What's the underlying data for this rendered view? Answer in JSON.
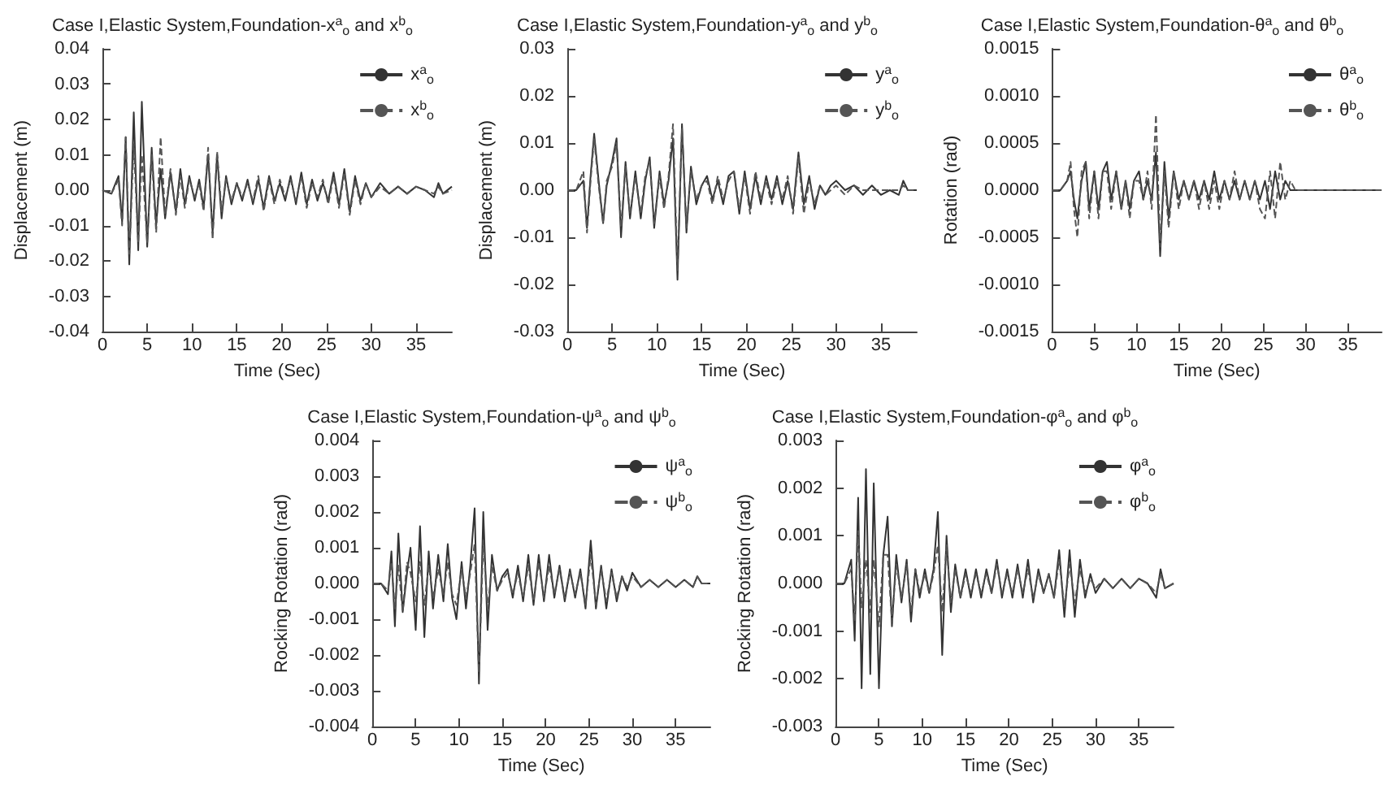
{
  "chart_data": [
    {
      "type": "line",
      "title": "Case I,Elastic System,Foundation-x$^{a}$$_{o}$ and x$^{b}$$_{o}$",
      "xlabel": "Time (Sec)",
      "ylabel": "Displacement (m)",
      "legend": "top right",
      "grid": false,
      "xlim": [
        0,
        39
      ],
      "xticks": [
        0,
        5,
        10,
        15,
        20,
        25,
        30,
        35
      ],
      "ylim": [
        -0.04,
        0.04
      ],
      "yticks": [
        {
          "value": -0.04,
          "label": "-0.04"
        },
        {
          "value": -0.03,
          "label": "-0.03"
        },
        {
          "value": -0.02,
          "label": "-0.02"
        },
        {
          "value": -0.01,
          "label": "-0.01"
        },
        {
          "value": 0,
          "label": "0.00"
        },
        {
          "value": 0.01,
          "label": "0.01"
        },
        {
          "value": 0.02,
          "label": "0.02"
        },
        {
          "value": 0.03,
          "label": "0.03"
        },
        {
          "value": 0.04,
          "label": "0.04"
        }
      ],
      "x": [
        0,
        1,
        1.8,
        2.2,
        2.6,
        3.0,
        3.5,
        4.0,
        4.4,
        5.0,
        5.5,
        6.0,
        6.5,
        7.0,
        7.6,
        8.2,
        8.7,
        9.2,
        9.7,
        10.3,
        10.8,
        11.3,
        11.8,
        12.3,
        12.8,
        13.3,
        13.8,
        14.4,
        15,
        15.6,
        16.2,
        16.8,
        17.4,
        18,
        18.6,
        19.2,
        19.8,
        20.4,
        21,
        21.6,
        22.2,
        22.8,
        23.4,
        24,
        24.6,
        25.2,
        25.8,
        26.4,
        27,
        27.6,
        28.2,
        28.8,
        29.4,
        30,
        31,
        32,
        33,
        34,
        35,
        36,
        37,
        37.5,
        38,
        39
      ],
      "series": [
        {
          "name": "x$^{a}$$_{o}$",
          "color": "#333333",
          "line_style": "solid",
          "values": [
            0,
            -0.001,
            0.004,
            -0.009,
            0.015,
            -0.021,
            0.022,
            -0.017,
            0.025,
            -0.016,
            0.012,
            -0.01,
            0.006,
            -0.008,
            0.005,
            -0.006,
            0.006,
            -0.004,
            0.004,
            -0.003,
            0.003,
            -0.005,
            0.01,
            -0.012,
            0.01,
            -0.008,
            0.004,
            -0.004,
            0.002,
            -0.003,
            0.003,
            -0.004,
            0.003,
            -0.005,
            0.004,
            -0.003,
            0.002,
            -0.003,
            0.004,
            -0.004,
            0.005,
            -0.004,
            0.003,
            -0.003,
            0.002,
            -0.003,
            0.005,
            -0.004,
            0.006,
            -0.006,
            0.004,
            -0.003,
            0.002,
            -0.002,
            0.002,
            -0.001,
            0.001,
            -0.001,
            0.001,
            0,
            -0.002,
            0.002,
            -0.001,
            0.001
          ]
        },
        {
          "name": "x$^{b}$$_{o}$",
          "color": "#555555",
          "line_style": "dashed",
          "values": [
            0,
            -0.001,
            0.003,
            -0.01,
            0.015,
            -0.018,
            0.013,
            -0.015,
            0.01,
            -0.015,
            0.01,
            -0.012,
            0.015,
            -0.007,
            0.006,
            -0.007,
            0.004,
            -0.005,
            0.003,
            -0.002,
            0.002,
            -0.006,
            0.012,
            -0.014,
            0.011,
            -0.006,
            0.003,
            -0.003,
            0.002,
            -0.002,
            0.002,
            -0.003,
            0.004,
            -0.006,
            0.003,
            -0.004,
            0.003,
            -0.002,
            0.003,
            -0.003,
            0.004,
            -0.005,
            0.002,
            -0.002,
            0.003,
            -0.004,
            0.004,
            -0.005,
            0.005,
            -0.007,
            0.003,
            -0.004,
            0.002,
            -0.002,
            0.001,
            -0.001,
            0.001,
            -0.001,
            0.001,
            0,
            -0.001,
            0.001,
            -0.001,
            0
          ]
        }
      ]
    },
    {
      "type": "line",
      "title": "Case I,Elastic System,Foundation-y$^{a}$$_{o}$ and y$^{b}$$_{o}$",
      "xlabel": "Time (Sec)",
      "ylabel": "Displacement (m)",
      "legend": "top right",
      "grid": false,
      "xlim": [
        0,
        39
      ],
      "xticks": [
        0,
        5,
        10,
        15,
        20,
        25,
        30,
        35
      ],
      "ylim": [
        -0.03,
        0.03
      ],
      "yticks": [
        {
          "value": -0.03,
          "label": "-0.03"
        },
        {
          "value": -0.02,
          "label": "-0.02"
        },
        {
          "value": -0.01,
          "label": "-0.01"
        },
        {
          "value": 0,
          "label": "0.00"
        },
        {
          "value": 0.01,
          "label": "0.01"
        },
        {
          "value": 0.02,
          "label": "0.02"
        },
        {
          "value": 0.03,
          "label": "0.03"
        }
      ],
      "x": [
        0,
        1,
        1.8,
        2.2,
        2.6,
        3.0,
        3.5,
        4.0,
        4.4,
        5.0,
        5.5,
        6.0,
        6.5,
        7.0,
        7.6,
        8.2,
        8.7,
        9.2,
        9.7,
        10.3,
        10.8,
        11.3,
        11.8,
        12.3,
        12.8,
        13.3,
        13.8,
        14.4,
        15,
        15.6,
        16.2,
        16.8,
        17.4,
        18,
        18.6,
        19.2,
        19.8,
        20.4,
        21,
        21.6,
        22.2,
        22.8,
        23.4,
        24,
        24.6,
        25.2,
        25.8,
        26.4,
        27,
        27.6,
        28.2,
        28.8,
        29.4,
        30,
        31,
        32,
        33,
        34,
        35,
        36,
        37,
        37.5,
        38,
        39
      ],
      "series": [
        {
          "name": "y$^{a}$$_{o}$",
          "color": "#333333",
          "line_style": "solid",
          "values": [
            0,
            0,
            0.002,
            -0.008,
            0.003,
            0.012,
            0.002,
            -0.007,
            0.001,
            0.006,
            0.011,
            -0.01,
            0.006,
            -0.006,
            0.004,
            -0.006,
            0.002,
            0.007,
            -0.008,
            0.004,
            -0.003,
            0.002,
            0.011,
            -0.019,
            0.014,
            -0.009,
            0.005,
            -0.003,
            0.001,
            0.003,
            -0.002,
            0.002,
            -0.003,
            0.003,
            0.004,
            -0.005,
            0.004,
            -0.004,
            0.003,
            -0.003,
            0.003,
            -0.002,
            0.003,
            -0.003,
            0.002,
            -0.004,
            0.008,
            -0.003,
            0.003,
            -0.004,
            0.001,
            -0.001,
            0.001,
            0.002,
            0,
            0.001,
            -0.001,
            0.001,
            -0.001,
            0,
            -0.001,
            0.002,
            0,
            0
          ]
        },
        {
          "name": "y$^{b}$$_{o}$",
          "color": "#555555",
          "line_style": "dashed",
          "values": [
            0,
            0,
            0.004,
            -0.009,
            0.002,
            0.011,
            0.001,
            -0.007,
            0.002,
            0.005,
            0.01,
            -0.008,
            0.005,
            -0.005,
            0.003,
            -0.005,
            0.003,
            0.006,
            -0.007,
            0.003,
            -0.004,
            0.003,
            0.014,
            -0.017,
            0.013,
            -0.008,
            0.004,
            -0.002,
            0.001,
            0.002,
            -0.003,
            0.003,
            -0.002,
            0.002,
            0.004,
            -0.004,
            0.003,
            -0.005,
            0.004,
            -0.002,
            0.002,
            -0.003,
            0.002,
            -0.002,
            0.003,
            -0.005,
            0.007,
            -0.005,
            0.002,
            -0.003,
            0.001,
            -0.001,
            0,
            0.001,
            -0.001,
            0.001,
            0,
            0,
            0,
            0,
            0,
            0.001,
            0,
            0
          ]
        }
      ]
    },
    {
      "type": "line",
      "title": "Case I,Elastic System,Foundation-θ$^{a}$$_{o}$ and θ$^{b}$$_{o}$",
      "xlabel": "Time (Sec)",
      "ylabel": "Rotation (rad)",
      "legend": "top right",
      "grid": false,
      "xlim": [
        0,
        39
      ],
      "xticks": [
        0,
        5,
        10,
        15,
        20,
        25,
        30,
        35
      ],
      "ylim": [
        -0.0015,
        0.0015
      ],
      "yticks": [
        -0.0015,
        {
          "value": -0.001,
          "label": "-0.0010"
        },
        -0.0005,
        {
          "value": 0,
          "label": "0.0000"
        },
        0.0005,
        {
          "value": 0.001,
          "label": "0.0010"
        },
        0.0015
      ],
      "x": [
        0,
        1,
        1.8,
        2.2,
        2.6,
        3.0,
        3.5,
        4.0,
        4.4,
        5.0,
        5.5,
        6.0,
        6.5,
        7.0,
        7.6,
        8.2,
        8.7,
        9.2,
        9.7,
        10.3,
        10.8,
        11.3,
        11.8,
        12.3,
        12.8,
        13.3,
        13.8,
        14.4,
        15,
        15.6,
        16.2,
        16.8,
        17.4,
        18,
        18.6,
        19.2,
        19.8,
        20.4,
        21,
        21.6,
        22.2,
        22.8,
        23.4,
        24,
        24.6,
        25.2,
        25.8,
        26.4,
        27,
        27.6,
        28.2,
        28.8,
        29.4,
        30,
        31,
        32,
        33,
        34,
        35,
        36,
        37,
        37.5,
        38,
        39
      ],
      "series": [
        {
          "name": "θ$^{a}$$_{o}$",
          "color": "#333333",
          "line_style": "solid",
          "values": [
            0,
            0,
            0.0001,
            0.0002,
            -0.0001,
            -0.0003,
            0.0001,
            0.0003,
            -0.0002,
            0.0002,
            -0.0002,
            0.0002,
            0.0003,
            -0.0001,
            0.0002,
            -0.0002,
            0.0001,
            -0.0002,
            0.0001,
            0.0002,
            -0.0001,
            0.0001,
            -0.0001,
            0.0004,
            -0.0007,
            0.0003,
            -0.0003,
            0.0002,
            -0.0001,
            0.0001,
            -0.0001,
            0.0001,
            -0.0001,
            0.0001,
            -0.0001,
            0.0002,
            -0.0001,
            0.0001,
            -0.0001,
            0.0001,
            -0.0001,
            0.0001,
            -0.0001,
            0.0001,
            -0.0001,
            0.0001,
            -0.0002,
            0.0002,
            -0.0001,
            0.0001,
            0,
            0,
            0,
            0,
            0,
            0,
            0,
            0,
            0,
            0,
            0,
            0,
            0,
            0
          ]
        },
        {
          "name": "θ$^{b}$$_{o}$",
          "color": "#555555",
          "line_style": "dashed",
          "values": [
            0,
            0,
            0.0001,
            0.0003,
            -0.0002,
            -0.0005,
            0.0002,
            0.0003,
            -0.0003,
            0.0002,
            -0.0003,
            0.0002,
            0.0002,
            -0.0002,
            0.0002,
            -0.0002,
            0.0001,
            -0.0003,
            0.0001,
            0.0001,
            -0.0001,
            0.0002,
            -0.0002,
            0.0008,
            -0.0006,
            0.0002,
            -0.0004,
            0.0002,
            -0.0002,
            0.0001,
            -0.0001,
            0.0001,
            -0.0002,
            0.0001,
            -0.0002,
            0.0001,
            -0.0002,
            0.0001,
            -0.0001,
            0.0002,
            -0.0001,
            0.0001,
            -0.0001,
            0.0001,
            -0.0002,
            -0.0003,
            0.0002,
            -0.0003,
            0.0003,
            -0.0001,
            0.0001,
            0,
            0,
            0,
            0,
            0,
            0,
            0,
            0,
            0,
            0,
            0,
            0,
            0
          ]
        }
      ]
    },
    {
      "type": "line",
      "title": "Case I,Elastic System,Foundation-ψ$^{a}$$_{o}$ and ψ$^{b}$$_{o}$",
      "xlabel": "Time (Sec)",
      "ylabel": "Rocking Rotation (rad)",
      "legend": "top right",
      "grid": false,
      "xlim": [
        0,
        39
      ],
      "xticks": [
        0,
        5,
        10,
        15,
        20,
        25,
        30,
        35
      ],
      "ylim": [
        -0.004,
        0.004
      ],
      "yticks": [
        -0.004,
        -0.003,
        -0.002,
        -0.001,
        {
          "value": 0,
          "label": "0.000"
        },
        0.001,
        0.002,
        0.003,
        0.004
      ],
      "x": [
        0,
        1,
        1.8,
        2.2,
        2.6,
        3.0,
        3.5,
        4.0,
        4.4,
        5.0,
        5.5,
        6.0,
        6.5,
        7.0,
        7.6,
        8.2,
        8.7,
        9.2,
        9.7,
        10.3,
        10.8,
        11.3,
        11.8,
        12.3,
        12.8,
        13.3,
        13.8,
        14.4,
        15,
        15.6,
        16.2,
        16.8,
        17.4,
        18,
        18.6,
        19.2,
        19.8,
        20.4,
        21,
        21.6,
        22.2,
        22.8,
        23.4,
        24,
        24.6,
        25.2,
        25.8,
        26.4,
        27,
        27.6,
        28.2,
        28.8,
        29.4,
        30,
        31,
        32,
        33,
        34,
        35,
        36,
        37,
        37.5,
        38,
        39
      ],
      "series": [
        {
          "name": "ψ$^{a}$$_{o}$",
          "color": "#333333",
          "line_style": "solid",
          "values": [
            0,
            0,
            -0.0003,
            0.0009,
            -0.0012,
            0.0014,
            -0.0008,
            0.0003,
            0.001,
            -0.0013,
            0.0016,
            -0.0015,
            0.0009,
            -0.0007,
            0.0008,
            -0.0005,
            0.0011,
            -0.0004,
            -0.001,
            0.0006,
            -0.0007,
            0.0005,
            0.0021,
            -0.0028,
            0.002,
            -0.0013,
            0.0008,
            -0.0002,
            0.0002,
            0.0004,
            -0.0004,
            0.0005,
            -0.0005,
            0.0008,
            -0.0006,
            0.0008,
            -0.0005,
            0.0008,
            -0.0004,
            0.0005,
            -0.0005,
            0.0004,
            -0.0004,
            0.0004,
            -0.0007,
            0.0012,
            -0.0007,
            0.0005,
            -0.0007,
            0.0004,
            -0.0005,
            0.0002,
            -0.0002,
            0.0003,
            -0.0001,
            0.0001,
            -0.0001,
            0.0001,
            -0.0001,
            0.0001,
            -0.0001,
            0.0002,
            0,
            0
          ]
        },
        {
          "name": "ψ$^{b}$$_{o}$",
          "color": "#555555",
          "line_style": "dashed",
          "values": [
            0,
            0,
            -0.0002,
            0.0006,
            -0.0007,
            0.0005,
            -0.0008,
            0.0006,
            0.0003,
            -0.0005,
            0.0006,
            -0.0006,
            0.0005,
            -0.0004,
            0.0004,
            -0.0003,
            0.0006,
            -0.0003,
            -0.0006,
            0.0004,
            -0.0004,
            0.0003,
            0.0011,
            -0.0025,
            0.0012,
            -0.0007,
            0.0005,
            -0.0002,
            0.0001,
            0.0003,
            -0.0003,
            0.0003,
            -0.0004,
            0.0005,
            -0.0005,
            0.0006,
            -0.0004,
            0.0005,
            -0.0003,
            0.0004,
            -0.0004,
            0.0003,
            -0.0003,
            0.0003,
            -0.0006,
            0.0008,
            -0.0006,
            0.0004,
            -0.0005,
            0.0003,
            -0.0004,
            0.0002,
            -0.0001,
            0.0002,
            -0.0001,
            0.0001,
            -0.0001,
            0.0001,
            -0.0001,
            0.0001,
            -0.0001,
            0.0002,
            0,
            0
          ]
        }
      ]
    },
    {
      "type": "line",
      "title": "Case I,Elastic System,Foundation-φ$^{a}$$_{o}$ and φ$^{b}$$_{o}$",
      "xlabel": "Time (Sec)",
      "ylabel": "Rocking Rotation (rad)",
      "legend": "top right",
      "grid": false,
      "xlim": [
        0,
        39
      ],
      "xticks": [
        0,
        5,
        10,
        15,
        20,
        25,
        30,
        35
      ],
      "ylim": [
        -0.003,
        0.003
      ],
      "yticks": [
        -0.003,
        -0.002,
        -0.001,
        {
          "value": 0,
          "label": "0.000"
        },
        0.001,
        0.002,
        0.003
      ],
      "x": [
        0,
        1,
        1.8,
        2.2,
        2.6,
        3.0,
        3.5,
        4.0,
        4.4,
        5.0,
        5.5,
        6.0,
        6.5,
        7.0,
        7.6,
        8.2,
        8.7,
        9.2,
        9.7,
        10.3,
        10.8,
        11.3,
        11.8,
        12.3,
        12.8,
        13.3,
        13.8,
        14.4,
        15,
        15.6,
        16.2,
        16.8,
        17.4,
        18,
        18.6,
        19.2,
        19.8,
        20.4,
        21,
        21.6,
        22.2,
        22.8,
        23.4,
        24,
        24.6,
        25.2,
        25.8,
        26.4,
        27,
        27.6,
        28.2,
        28.8,
        29.4,
        30,
        31,
        32,
        33,
        34,
        35,
        36,
        37,
        37.5,
        38,
        39
      ],
      "series": [
        {
          "name": "φ$^{a}$$_{o}$",
          "color": "#333333",
          "line_style": "solid",
          "values": [
            0,
            0,
            0.0005,
            -0.0012,
            0.0018,
            -0.0022,
            0.0024,
            -0.0019,
            0.0021,
            -0.0022,
            0.0006,
            0.0014,
            -0.0009,
            0.0006,
            -0.0004,
            0.0005,
            -0.0008,
            0.0003,
            -0.0003,
            0.0003,
            -0.0002,
            0.0003,
            0.0015,
            -0.0015,
            0.001,
            -0.0006,
            0.0004,
            -0.0003,
            0.0003,
            -0.0003,
            0.0003,
            -0.0003,
            0.0003,
            -0.0002,
            0.0005,
            -0.0003,
            0.0003,
            -0.0003,
            0.0004,
            -0.0003,
            0.0005,
            -0.0004,
            0.0003,
            -0.0002,
            0.0002,
            -0.0003,
            0.0007,
            -0.0007,
            0.0007,
            -0.0007,
            0.0005,
            -0.0003,
            0.0002,
            -0.0002,
            0.0001,
            -0.0001,
            0.0001,
            -0.0001,
            0.0001,
            0,
            -0.0003,
            0.0003,
            -0.0001,
            0
          ]
        },
        {
          "name": "φ$^{b}$$_{o}$",
          "color": "#555555",
          "line_style": "dashed",
          "values": [
            0,
            0,
            0.0003,
            -0.0008,
            0.0011,
            -0.0005,
            0.0005,
            -0.0006,
            0.0005,
            -0.0009,
            0.0006,
            0.0006,
            -0.0008,
            0.0004,
            -0.0003,
            0.0004,
            -0.0006,
            0.0003,
            -0.0002,
            0.0002,
            -0.0002,
            0.0002,
            0.0008,
            -0.0006,
            0.0008,
            -0.0004,
            0.0003,
            -0.0003,
            0.0002,
            -0.0002,
            0.0002,
            -0.0002,
            0.0002,
            -0.0002,
            0.0004,
            -0.0002,
            0.0002,
            -0.0002,
            0.0003,
            -0.0002,
            0.0003,
            -0.0003,
            0.0002,
            -0.0002,
            0.0002,
            -0.0003,
            0.0005,
            -0.0005,
            0.0004,
            -0.0004,
            0.0003,
            -0.0002,
            0.0001,
            -0.0001,
            0.0001,
            -0.0001,
            0.0001,
            -0.0001,
            0.0001,
            0,
            -0.0002,
            0.0002,
            -0.0001,
            0
          ]
        }
      ]
    }
  ]
}
